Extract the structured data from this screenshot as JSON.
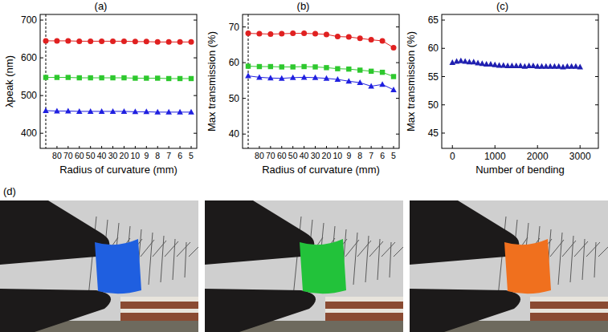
{
  "chart_data": [
    {
      "panel_label": "(a)",
      "type": "line",
      "xlabel": "Radius of curvature (mm)",
      "ylabel": "λpeak (nm)",
      "categories": [
        null,
        "80",
        "70",
        "60",
        "50",
        "40",
        "30",
        "20",
        "10",
        "9",
        "8",
        "7",
        "6",
        "5"
      ],
      "ylim": [
        360,
        715
      ],
      "yticks": [
        400,
        500,
        600,
        700
      ],
      "grid": false,
      "series": [
        {
          "color": "#e02020",
          "marker": "circle",
          "values": [
            645,
            645,
            645,
            644,
            644,
            644,
            644,
            644,
            643,
            643,
            642,
            642,
            642,
            642
          ]
        },
        {
          "color": "#2ec82e",
          "marker": "square",
          "values": [
            548,
            548,
            548,
            547,
            547,
            547,
            547,
            547,
            546,
            546,
            546,
            545,
            545,
            545
          ]
        },
        {
          "color": "#2020e0",
          "marker": "triangle",
          "values": [
            460,
            459,
            459,
            458,
            458,
            458,
            458,
            458,
            457,
            457,
            456,
            456,
            456,
            456
          ]
        }
      ]
    },
    {
      "panel_label": "(b)",
      "type": "line",
      "xlabel": "Radius of curvature (mm)",
      "ylabel": "Max transmission (%)",
      "categories": [
        null,
        "80",
        "70",
        "60",
        "50",
        "40",
        "30",
        "20",
        "10",
        "9",
        "8",
        "7",
        "6",
        "5"
      ],
      "ylim": [
        36,
        73.5
      ],
      "yticks": [
        40,
        50,
        60,
        70
      ],
      "grid": false,
      "series": [
        {
          "color": "#e02020",
          "marker": "circle",
          "values": [
            68.2,
            68.1,
            68.0,
            68.1,
            68.2,
            68.2,
            68.1,
            67.9,
            67.3,
            67.2,
            66.8,
            66.4,
            66.1,
            64.2
          ]
        },
        {
          "color": "#2ec82e",
          "marker": "square",
          "values": [
            59.0,
            58.9,
            58.9,
            58.8,
            58.8,
            58.9,
            58.8,
            58.6,
            58.3,
            58.2,
            57.9,
            57.6,
            57.3,
            56.1
          ]
        },
        {
          "color": "#2020e0",
          "marker": "triangle",
          "values": [
            56.3,
            55.9,
            55.7,
            55.6,
            55.8,
            55.9,
            55.8,
            55.6,
            55.3,
            54.8,
            54.4,
            53.4,
            53.9,
            52.4
          ]
        }
      ]
    },
    {
      "panel_label": "(c)",
      "type": "scatter",
      "xlabel": "Number of bending",
      "ylabel": "Max transmission (%)",
      "x": [
        0,
        100,
        200,
        300,
        400,
        500,
        600,
        700,
        800,
        900,
        1000,
        1100,
        1200,
        1300,
        1400,
        1500,
        1600,
        1700,
        1800,
        1900,
        2000,
        2100,
        2200,
        2300,
        2400,
        2500,
        2600,
        2700,
        2800,
        2900,
        3000
      ],
      "xlim": [
        -250,
        3430
      ],
      "xticks": [
        0,
        1000,
        2000,
        3000
      ],
      "ylim": [
        42.3,
        66
      ],
      "yticks": [
        45,
        50,
        55,
        60,
        65
      ],
      "grid": false,
      "series": [
        {
          "color": "#1f1fb0",
          "marker": "triangle",
          "values": [
            57.5,
            57.7,
            57.8,
            57.7,
            57.6,
            57.6,
            57.4,
            57.3,
            57.2,
            57.2,
            57.1,
            57.0,
            57.0,
            56.9,
            56.9,
            56.9,
            56.9,
            56.8,
            56.9,
            56.9,
            56.8,
            56.8,
            56.8,
            56.8,
            56.8,
            56.8,
            56.7,
            56.8,
            56.8,
            56.8,
            56.7
          ]
        }
      ]
    }
  ],
  "photos": {
    "label": "(d)",
    "film_colors": [
      "#1f5fe0",
      "#22c23a",
      "#f0701e"
    ]
  }
}
